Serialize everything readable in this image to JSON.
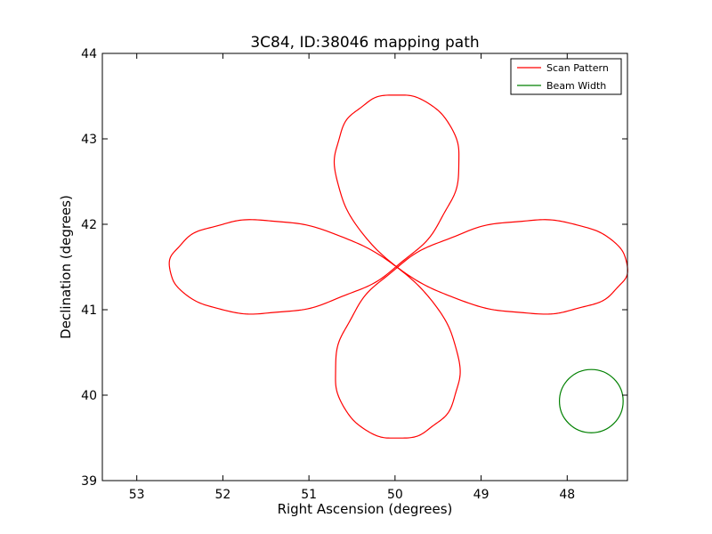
{
  "chart_data": {
    "type": "line",
    "title": "3C84, ID:38046 mapping path",
    "xlabel": "Right Ascension (degrees)",
    "ylabel": "Declination (degrees)",
    "xlim": [
      53.4,
      47.3
    ],
    "ylim": [
      39,
      44
    ],
    "x_inverted": true,
    "x_ticks": [
      53,
      52,
      51,
      50,
      49,
      48
    ],
    "y_ticks": [
      39,
      40,
      41,
      42,
      43,
      44
    ],
    "x_tick_labels": [
      "53",
      "52",
      "51",
      "50",
      "49",
      "48"
    ],
    "y_tick_labels": [
      "39",
      "40",
      "41",
      "42",
      "43",
      "44"
    ],
    "grid": false,
    "legend_position": "top-right",
    "series": [
      {
        "name": "Scan Pattern",
        "color": "#ff0000",
        "shape": "four-lobed rosette",
        "center": [
          49.98,
          41.5
        ],
        "lobe_tips": {
          "top": [
            49.98,
            43.52
          ],
          "bottom": [
            49.98,
            39.49
          ],
          "left": [
            52.62,
            41.5
          ],
          "right": [
            47.3,
            41.5
          ]
        }
      },
      {
        "name": "Beam Width",
        "color": "#008000",
        "shape": "circle",
        "center": [
          47.72,
          39.93
        ],
        "diameter_deg": 0.74
      }
    ]
  }
}
